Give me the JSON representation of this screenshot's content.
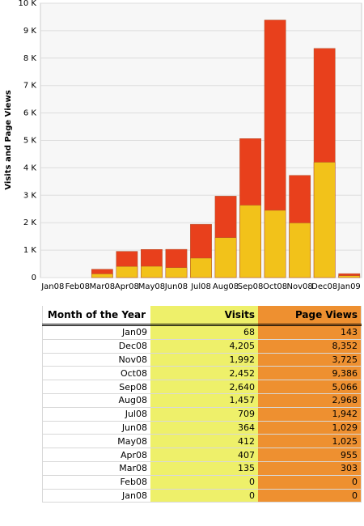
{
  "chart_data": {
    "type": "bar",
    "y_label": "Visits and Page Views",
    "categories": [
      "Jan08",
      "Feb08",
      "Mar08",
      "Apr08",
      "May08",
      "Jun08",
      "Jul08",
      "Aug08",
      "Sep08",
      "Oct08",
      "Nov08",
      "Dec08",
      "Jan09"
    ],
    "series": [
      {
        "name": "Page Views",
        "color": "#e8401c",
        "values": [
          0,
          0,
          303,
          955,
          1025,
          1029,
          1942,
          2968,
          5066,
          9386,
          3725,
          8352,
          143
        ]
      },
      {
        "name": "Visits",
        "color": "#f2c21a",
        "values": [
          0,
          0,
          135,
          407,
          412,
          364,
          709,
          1457,
          2640,
          2452,
          1992,
          4205,
          68
        ]
      }
    ],
    "ylim": [
      0,
      10000
    ],
    "yticks": [
      0,
      {
        "value": 1000,
        "label": "1 K"
      },
      {
        "value": 2000,
        "label": "2 K"
      },
      {
        "value": 3000,
        "label": "3 K"
      },
      {
        "value": 4000,
        "label": "4 K"
      },
      {
        "value": 5000,
        "label": "5 K"
      },
      {
        "value": 6000,
        "label": "6 K"
      },
      {
        "value": 7000,
        "label": "7 K"
      },
      {
        "value": 8000,
        "label": "8 K"
      },
      {
        "value": 9000,
        "label": "9 K"
      },
      {
        "value": 10000,
        "label": "10 K"
      }
    ],
    "grid": true
  },
  "table": {
    "headers": [
      "Month of the Year",
      "Visits",
      "Page Views"
    ],
    "rows": [
      [
        "Jan09",
        "68",
        "143"
      ],
      [
        "Dec08",
        "4,205",
        "8,352"
      ],
      [
        "Nov08",
        "1,992",
        "3,725"
      ],
      [
        "Oct08",
        "2,452",
        "9,386"
      ],
      [
        "Sep08",
        "2,640",
        "5,066"
      ],
      [
        "Aug08",
        "1,457",
        "2,968"
      ],
      [
        "Jul08",
        "709",
        "1,942"
      ],
      [
        "Jun08",
        "364",
        "1,029"
      ],
      [
        "May08",
        "412",
        "1,025"
      ],
      [
        "Apr08",
        "407",
        "955"
      ],
      [
        "Mar08",
        "135",
        "303"
      ],
      [
        "Feb08",
        "0",
        "0"
      ],
      [
        "Jan08",
        "0",
        "0"
      ]
    ]
  }
}
